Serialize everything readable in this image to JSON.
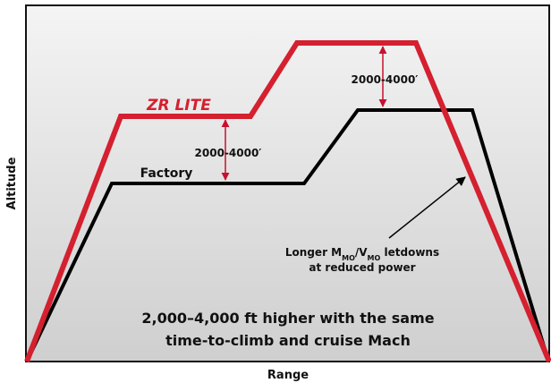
{
  "title_series": {
    "zr_lite": "ZR LITE",
    "factory": "Factory"
  },
  "axes": {
    "y_label": "Altitude",
    "x_label": "Range"
  },
  "annotations": {
    "gap_climb": "2000-4000′",
    "gap_cruise": "2000-4000′",
    "letdown_note": {
      "line1": [
        "Longer M",
        "MO",
        "/V",
        "MO",
        " letdowns"
      ],
      "line2": "at reduced power"
    },
    "summary": [
      "2,000–4,000 ft higher with the same",
      "time-to-climb and cruise Mach"
    ]
  }
}
